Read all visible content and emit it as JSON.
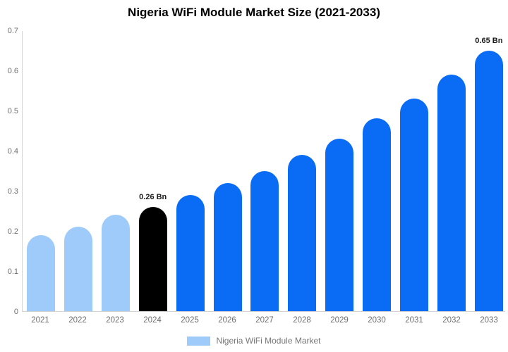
{
  "title": "Nigeria WiFi Module Market Size (2021-2033)",
  "legend": {
    "label": "Nigeria WiFi Module Market",
    "swatch_color": "#9ecbf9"
  },
  "colors": {
    "past": "#9ecbf9",
    "current": "#000000",
    "forecast": "#0a6cf5",
    "axis_line": "#d3d3d3",
    "tick_text": "#6e6e6e",
    "annotation_text": "#1a1a1a"
  },
  "chart_data": {
    "type": "bar",
    "title": "Nigeria WiFi Module Market Size (2021-2033)",
    "xlabel": "",
    "ylabel": "",
    "unit": "Bn",
    "ylim": [
      0,
      0.7
    ],
    "yticks": [
      0,
      0.1,
      0.2,
      0.3,
      0.4,
      0.5,
      0.6,
      0.7
    ],
    "ytick_labels": [
      "0",
      "0.1",
      "0.2",
      "0.3",
      "0.4",
      "0.5",
      "0.6",
      "0.7"
    ],
    "categories": [
      "2021",
      "2022",
      "2023",
      "2024",
      "2025",
      "2026",
      "2027",
      "2028",
      "2029",
      "2030",
      "2031",
      "2032",
      "2033"
    ],
    "values": [
      0.19,
      0.21,
      0.24,
      0.26,
      0.29,
      0.32,
      0.35,
      0.39,
      0.43,
      0.48,
      0.53,
      0.59,
      0.65
    ],
    "segments": [
      "past",
      "past",
      "past",
      "current",
      "forecast",
      "forecast",
      "forecast",
      "forecast",
      "forecast",
      "forecast",
      "forecast",
      "forecast",
      "forecast"
    ],
    "annotations": [
      {
        "category": "2024",
        "text": "0.26 Bn"
      },
      {
        "category": "2033",
        "text": "0.65 Bn"
      }
    ],
    "legend": [
      "Nigeria WiFi Module Market"
    ],
    "legend_position": "bottom",
    "grid": false
  }
}
